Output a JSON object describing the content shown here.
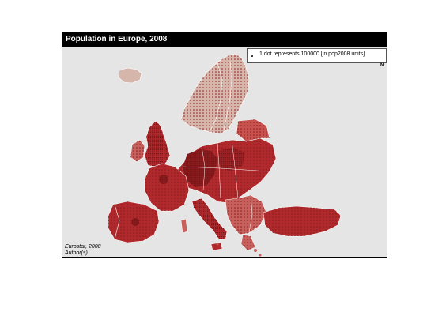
{
  "map": {
    "title": "Population in Europe, 2008",
    "legend": {
      "label": "1 dot represents 100000 [in pop2008 units]"
    },
    "north_label": "N",
    "source": "Eurostat, 2008",
    "author": "Author(s)",
    "colors": {
      "background": "#e5e5e5",
      "land_light": "#d6b5ab",
      "land_dark": "#b0292c",
      "dot": "#8a1a1c",
      "border": "#ffffff",
      "title_bar": "#000000"
    }
  }
}
